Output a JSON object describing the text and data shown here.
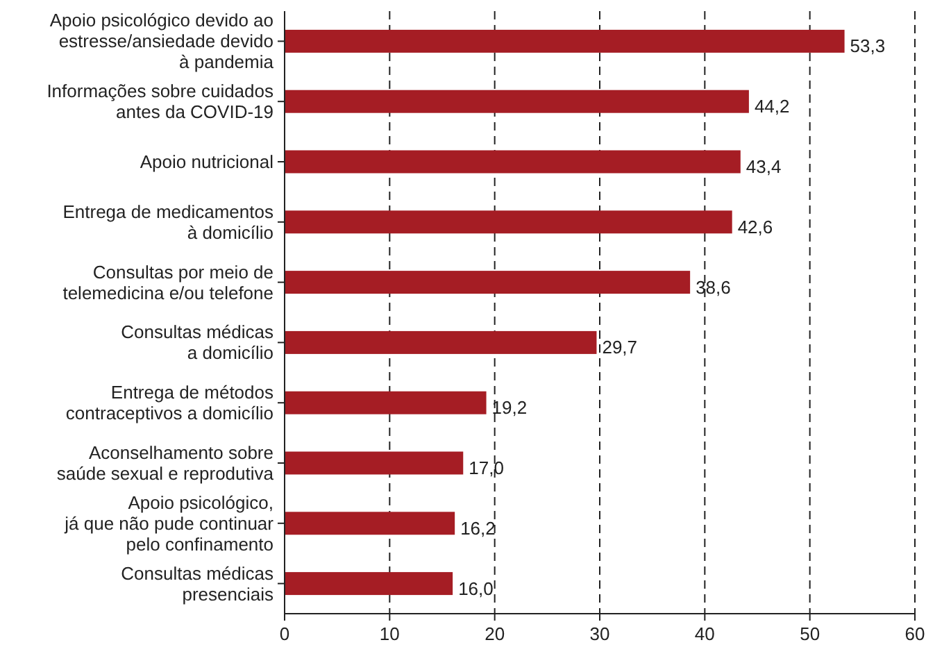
{
  "chart_data": {
    "type": "bar",
    "orientation": "horizontal",
    "categories": [
      "Apoio psicológico devido ao\nestresse/ansiedade devido\nà pandemia",
      "Informações sobre cuidados\nantes da COVID-19",
      "Apoio nutricional",
      "Entrega de medicamentos\nà domicílio",
      "Consultas por meio de\ntelemedicina e/ou telefone",
      "Consultas médicas\na domicílio",
      "Entrega de métodos\ncontraceptivos a domicílio",
      "Aconselhamento sobre\nsaúde sexual e reprodutiva",
      "Apoio psicológico,\njá que não pude continuar\npelo confinamento",
      "Consultas médicas\npresenciais"
    ],
    "values": [
      53.3,
      44.2,
      43.4,
      42.6,
      38.6,
      29.7,
      19.2,
      17.0,
      16.2,
      16.0
    ],
    "value_labels": [
      "53,3",
      "44,2",
      "43,4",
      "42,6",
      "38,6",
      "29,7",
      "19,2",
      "17,0",
      "16,2",
      "16,0"
    ],
    "color": "#a51d24",
    "xlim": [
      0,
      60
    ],
    "xticks": [
      0,
      10,
      20,
      30,
      40,
      50,
      60
    ],
    "grid": "x"
  }
}
